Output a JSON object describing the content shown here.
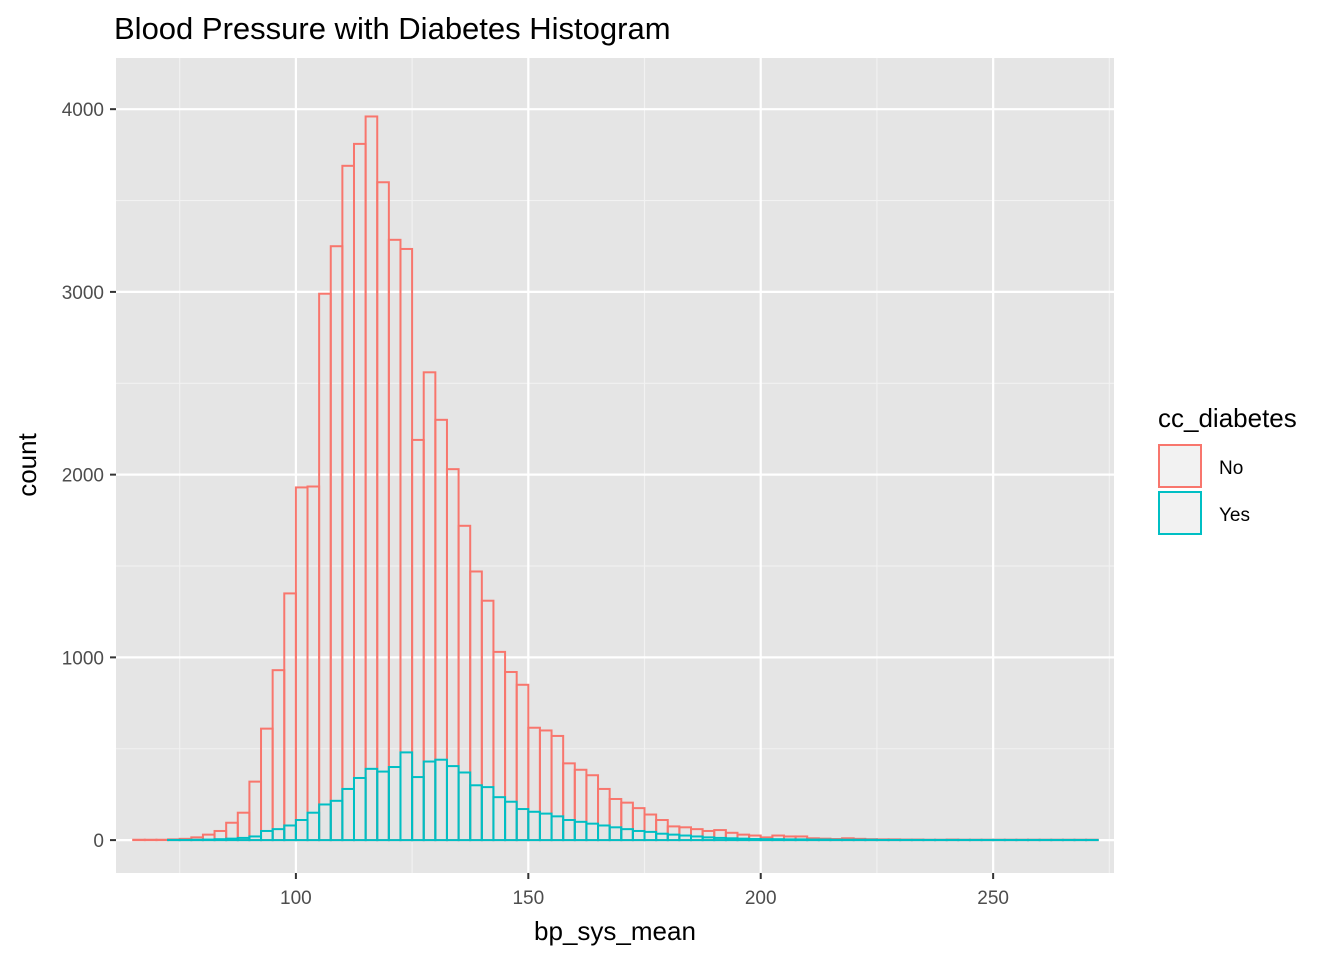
{
  "chart_data": {
    "type": "histogram",
    "title": "Blood Pressure with Diabetes Histogram",
    "xlabel": "bp_sys_mean",
    "ylabel": "count",
    "xlim": [
      61.3,
      276.0
    ],
    "ylim": [
      -180,
      4280
    ],
    "x_ticks": [
      100,
      150,
      200,
      250
    ],
    "x_tick_labels": [
      "100",
      "150",
      "200",
      "250"
    ],
    "y_ticks": [
      0,
      1000,
      2000,
      3000,
      4000
    ],
    "y_tick_labels": [
      "0",
      "1000",
      "2000",
      "3000",
      "4000"
    ],
    "x_minor_ticks": [
      75,
      125,
      175,
      225,
      275
    ],
    "y_minor_ticks": [
      500,
      1500,
      2500,
      3500
    ],
    "grid": true,
    "bin_start": 65.0,
    "bin_width": 2.5,
    "background": "#e5e5e5",
    "legend": {
      "title": "cc_diabetes",
      "position": "right"
    },
    "series": [
      {
        "name": "No",
        "color": "#f8766d",
        "values": [
          2,
          2,
          2,
          4,
          7,
          15,
          30,
          50,
          95,
          150,
          320,
          610,
          930,
          1350,
          1930,
          1935,
          2990,
          3250,
          3690,
          3810,
          3960,
          3600,
          3285,
          3235,
          2190,
          2560,
          2300,
          2030,
          1720,
          1470,
          1310,
          1030,
          920,
          850,
          615,
          600,
          570,
          420,
          385,
          355,
          280,
          225,
          205,
          175,
          140,
          110,
          75,
          70,
          60,
          50,
          55,
          40,
          30,
          25,
          15,
          25,
          20,
          20,
          10,
          8,
          6,
          10,
          7,
          5,
          4,
          4,
          3,
          3,
          2,
          2,
          3,
          2,
          2,
          2,
          2,
          2,
          2,
          2,
          2,
          2,
          2,
          2,
          2
        ]
      },
      {
        "name": "Yes",
        "color": "#00bfc4",
        "values": [
          0,
          0,
          0,
          1,
          1,
          2,
          3,
          5,
          8,
          12,
          20,
          50,
          60,
          80,
          110,
          150,
          195,
          215,
          280,
          340,
          390,
          375,
          400,
          480,
          345,
          430,
          440,
          405,
          370,
          300,
          290,
          235,
          210,
          170,
          155,
          145,
          130,
          110,
          100,
          90,
          80,
          70,
          60,
          50,
          45,
          35,
          30,
          25,
          20,
          15,
          12,
          10,
          8,
          6,
          5,
          5,
          4,
          4,
          3,
          3,
          2,
          2,
          2,
          2,
          1,
          1,
          1,
          1,
          1,
          1,
          1,
          1,
          1,
          1,
          1,
          1,
          1,
          1,
          1,
          1,
          1,
          1,
          1
        ]
      }
    ]
  }
}
